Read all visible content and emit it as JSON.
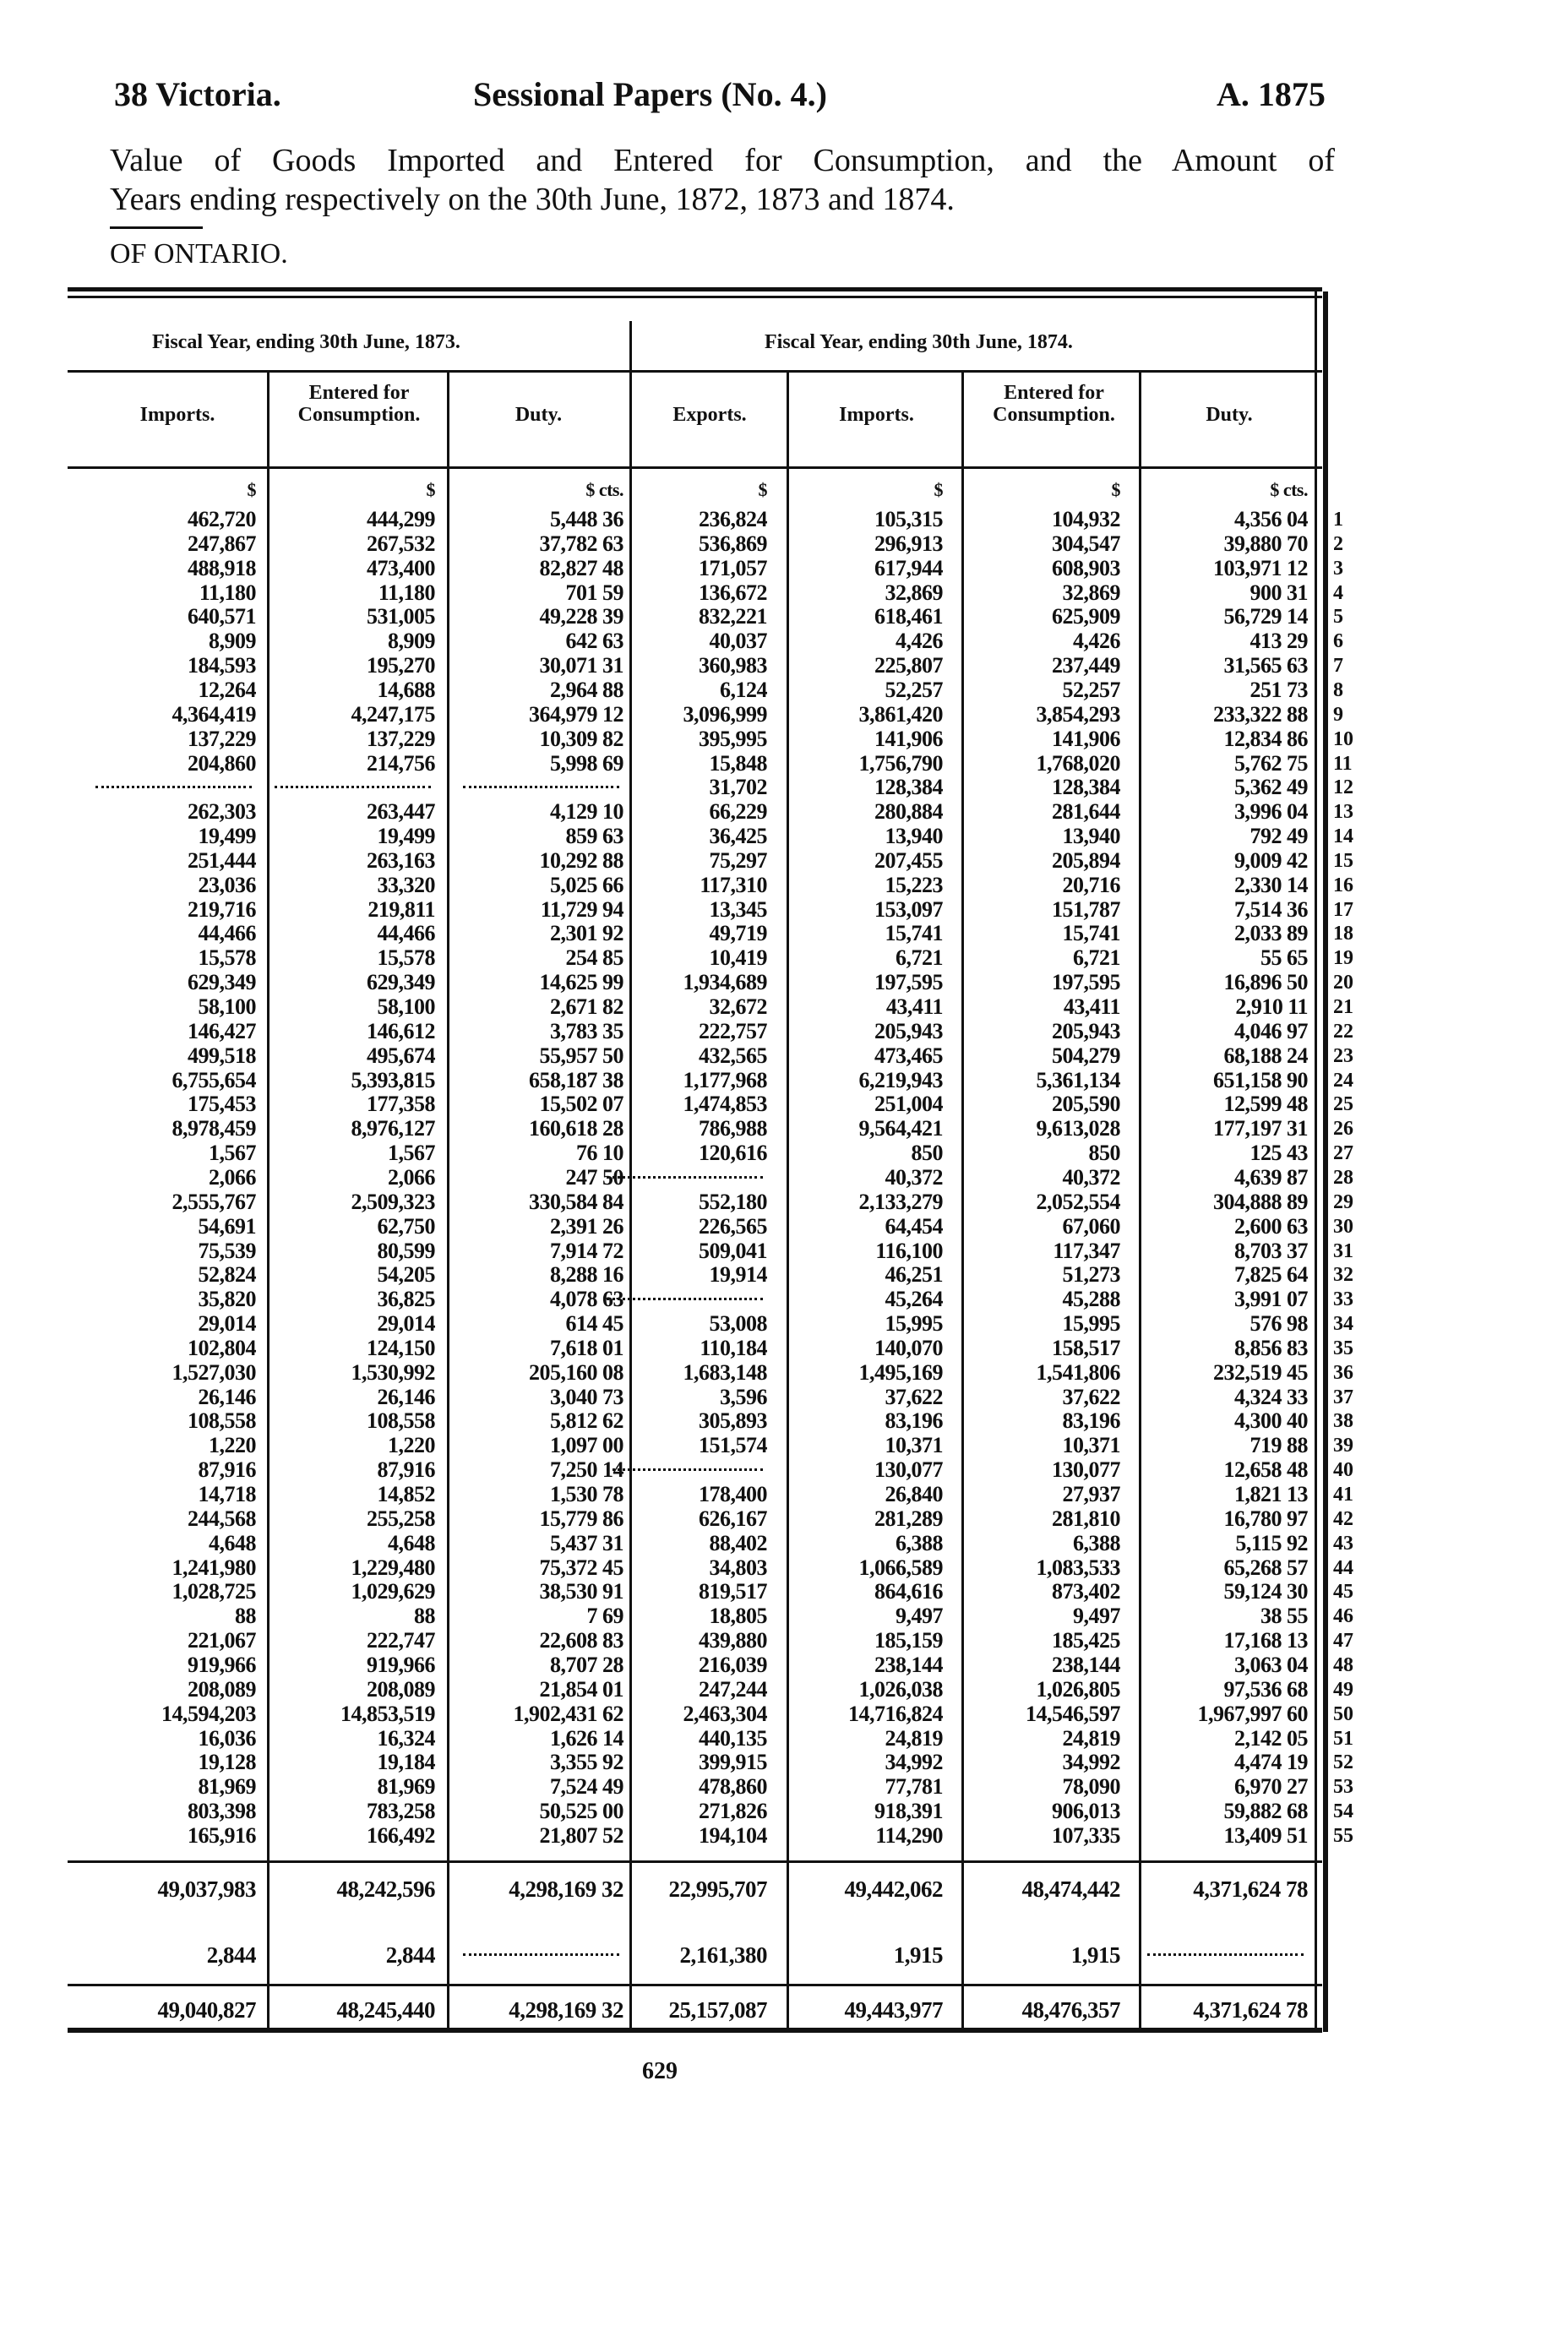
{
  "header": {
    "left": "38 Victoria.",
    "center": "Sessional Papers (No. 4.)",
    "right": "A. 1875"
  },
  "title": {
    "line1": "Value of Goods Imported and Entered for Consumption, and the Amount of",
    "line2": "Years ending respectively on the 30th June, 1872, 1873 and 1874.",
    "section": "OF ONTARIO."
  },
  "table": {
    "fiscal_1873": "Fiscal Year, ending 30th June, 1873.",
    "fiscal_1874": "Fiscal Year, ending 30th June, 1874.",
    "columns": [
      "Imports.",
      "Entered for Consumption.",
      "Duty.",
      "Exports.",
      "Imports.",
      "Entered for Consumption.",
      "Duty."
    ],
    "units": [
      "$",
      "$",
      "$ cts.",
      "$",
      "$",
      "$",
      "$ cts."
    ],
    "rows": [
      [
        "1",
        "462,720",
        "444,299",
        "5,448 36",
        "236,824",
        "105,315",
        "104,932",
        "4,356 04"
      ],
      [
        "2",
        "247,867",
        "267,532",
        "37,782 63",
        "536,869",
        "296,913",
        "304,547",
        "39,880 70"
      ],
      [
        "3",
        "488,918",
        "473,400",
        "82,827 48",
        "171,057",
        "617,944",
        "608,903",
        "103,971 12"
      ],
      [
        "4",
        "11,180",
        "11,180",
        "701 59",
        "136,672",
        "32,869",
        "32,869",
        "900 31"
      ],
      [
        "5",
        "640,571",
        "531,005",
        "49,228 39",
        "832,221",
        "618,461",
        "625,909",
        "56,729 14"
      ],
      [
        "6",
        "8,909",
        "8,909",
        "642 63",
        "40,037",
        "4,426",
        "4,426",
        "413 29"
      ],
      [
        "7",
        "184,593",
        "195,270",
        "30,071 31",
        "360,983",
        "225,807",
        "237,449",
        "31,565 63"
      ],
      [
        "8",
        "12,264",
        "14,688",
        "2,964 88",
        "6,124",
        "52,257",
        "52,257",
        "251 73"
      ],
      [
        "9",
        "4,364,419",
        "4,247,175",
        "364,979 12",
        "3,096,999",
        "3,861,420",
        "3,854,293",
        "233,322 88"
      ],
      [
        "10",
        "137,229",
        "137,229",
        "10,309 82",
        "395,995",
        "141,906",
        "141,906",
        "12,834 86"
      ],
      [
        "11",
        "204,860",
        "214,756",
        "5,998 69",
        "15,848",
        "1,756,790",
        "1,768,020",
        "5,762 75"
      ],
      [
        "12",
        null,
        null,
        null,
        "31,702",
        "128,384",
        "128,384",
        "5,362 49"
      ],
      [
        "13",
        "262,303",
        "263,447",
        "4,129 10",
        "66,229",
        "280,884",
        "281,644",
        "3,996 04"
      ],
      [
        "14",
        "19,499",
        "19,499",
        "859 63",
        "36,425",
        "13,940",
        "13,940",
        "792 49"
      ],
      [
        "15",
        "251,444",
        "263,163",
        "10,292 88",
        "75,297",
        "207,455",
        "205,894",
        "9,009 42"
      ],
      [
        "16",
        "23,036",
        "33,320",
        "5,025 66",
        "117,310",
        "15,223",
        "20,716",
        "2,330 14"
      ],
      [
        "17",
        "219,716",
        "219,811",
        "11,729 94",
        "13,345",
        "153,097",
        "151,787",
        "7,514 36"
      ],
      [
        "18",
        "44,466",
        "44,466",
        "2,301 92",
        "49,719",
        "15,741",
        "15,741",
        "2,033 89"
      ],
      [
        "19",
        "15,578",
        "15,578",
        "254 85",
        "10,419",
        "6,721",
        "6,721",
        "55 65"
      ],
      [
        "20",
        "629,349",
        "629,349",
        "14,625 99",
        "1,934,689",
        "197,595",
        "197,595",
        "16,896 50"
      ],
      [
        "21",
        "58,100",
        "58,100",
        "2,671 82",
        "32,672",
        "43,411",
        "43,411",
        "2,910 11"
      ],
      [
        "22",
        "146,427",
        "146,612",
        "3,783 35",
        "222,757",
        "205,943",
        "205,943",
        "4,046 97"
      ],
      [
        "23",
        "499,518",
        "495,674",
        "55,957 50",
        "432,565",
        "473,465",
        "504,279",
        "68,188 24"
      ],
      [
        "24",
        "6,755,654",
        "5,393,815",
        "658,187 38",
        "1,177,968",
        "6,219,943",
        "5,361,134",
        "651,158 90"
      ],
      [
        "25",
        "175,453",
        "177,358",
        "15,502 07",
        "1,474,853",
        "251,004",
        "205,590",
        "12,599 48"
      ],
      [
        "26",
        "8,978,459",
        "8,976,127",
        "160,618 28",
        "786,988",
        "9,564,421",
        "9,613,028",
        "177,197 31"
      ],
      [
        "27",
        "1,567",
        "1,567",
        "76 10",
        "120,616",
        "850",
        "850",
        "125 43"
      ],
      [
        "28",
        "2,066",
        "2,066",
        "247 50",
        null,
        "40,372",
        "40,372",
        "4,639 87"
      ],
      [
        "29",
        "2,555,767",
        "2,509,323",
        "330,584 84",
        "552,180",
        "2,133,279",
        "2,052,554",
        "304,888 89"
      ],
      [
        "30",
        "54,691",
        "62,750",
        "2,391 26",
        "226,565",
        "64,454",
        "67,060",
        "2,600 63"
      ],
      [
        "31",
        "75,539",
        "80,599",
        "7,914 72",
        "509,041",
        "116,100",
        "117,347",
        "8,703 37"
      ],
      [
        "32",
        "52,824",
        "54,205",
        "8,288 16",
        "19,914",
        "46,251",
        "51,273",
        "7,825 64"
      ],
      [
        "33",
        "35,820",
        "36,825",
        "4,078 63",
        null,
        "45,264",
        "45,288",
        "3,991 07"
      ],
      [
        "34",
        "29,014",
        "29,014",
        "614 45",
        "53,008",
        "15,995",
        "15,995",
        "576 98"
      ],
      [
        "35",
        "102,804",
        "124,150",
        "7,618 01",
        "110,184",
        "140,070",
        "158,517",
        "8,856 83"
      ],
      [
        "36",
        "1,527,030",
        "1,530,992",
        "205,160 08",
        "1,683,148",
        "1,495,169",
        "1,541,806",
        "232,519 45"
      ],
      [
        "37",
        "26,146",
        "26,146",
        "3,040 73",
        "3,596",
        "37,622",
        "37,622",
        "4,324 33"
      ],
      [
        "38",
        "108,558",
        "108,558",
        "5,812 62",
        "305,893",
        "83,196",
        "83,196",
        "4,300 40"
      ],
      [
        "39",
        "1,220",
        "1,220",
        "1,097 00",
        "151,574",
        "10,371",
        "10,371",
        "719 88"
      ],
      [
        "40",
        "87,916",
        "87,916",
        "7,250 14",
        null,
        "130,077",
        "130,077",
        "12,658 48"
      ],
      [
        "41",
        "14,718",
        "14,852",
        "1,530 78",
        "178,400",
        "26,840",
        "27,937",
        "1,821 13"
      ],
      [
        "42",
        "244,568",
        "255,258",
        "15,779 86",
        "626,167",
        "281,289",
        "281,810",
        "16,780 97"
      ],
      [
        "43",
        "4,648",
        "4,648",
        "5,437 31",
        "88,402",
        "6,388",
        "6,388",
        "5,115 92"
      ],
      [
        "44",
        "1,241,980",
        "1,229,480",
        "75,372 45",
        "34,803",
        "1,066,589",
        "1,083,533",
        "65,268 57"
      ],
      [
        "45",
        "1,028,725",
        "1,029,629",
        "38,530 91",
        "819,517",
        "864,616",
        "873,402",
        "59,124 30"
      ],
      [
        "46",
        "88",
        "88",
        "7 69",
        "18,805",
        "9,497",
        "9,497",
        "38 55"
      ],
      [
        "47",
        "221,067",
        "222,747",
        "22,608 83",
        "439,880",
        "185,159",
        "185,425",
        "17,168 13"
      ],
      [
        "48",
        "919,966",
        "919,966",
        "8,707 28",
        "216,039",
        "238,144",
        "238,144",
        "3,063 04"
      ],
      [
        "49",
        "208,089",
        "208,089",
        "21,854 01",
        "247,244",
        "1,026,038",
        "1,026,805",
        "97,536 68"
      ],
      [
        "50",
        "14,594,203",
        "14,853,519",
        "1,902,431 62",
        "2,463,304",
        "14,716,824",
        "14,546,597",
        "1,967,997 60"
      ],
      [
        "51",
        "16,036",
        "16,324",
        "1,626 14",
        "440,135",
        "24,819",
        "24,819",
        "2,142 05"
      ],
      [
        "52",
        "19,128",
        "19,184",
        "3,355 92",
        "399,915",
        "34,992",
        "34,992",
        "4,474 19"
      ],
      [
        "53",
        "81,969",
        "81,969",
        "7,524 49",
        "478,860",
        "77,781",
        "78,090",
        "6,970 27"
      ],
      [
        "54",
        "803,398",
        "783,258",
        "50,525 00",
        "271,826",
        "918,391",
        "906,013",
        "59,882 68"
      ],
      [
        "55",
        "165,916",
        "166,492",
        "21,807 52",
        "194,104",
        "114,290",
        "107,335",
        "13,409 51"
      ]
    ],
    "totals": [
      [
        "49,037,983",
        "48,242,596",
        "4,298,169 32",
        "22,995,707",
        "49,442,062",
        "48,474,442",
        "4,371,624 78"
      ],
      [
        "2,844",
        "2,844",
        null,
        "2,161,380",
        "1,915",
        "1,915",
        null
      ],
      [
        "49,040,827",
        "48,245,440",
        "4,298,169 32",
        "25,157,087",
        "49,443,977",
        "48,476,357",
        "4,371,624 78"
      ]
    ]
  },
  "footer": {
    "page_number": "629"
  }
}
